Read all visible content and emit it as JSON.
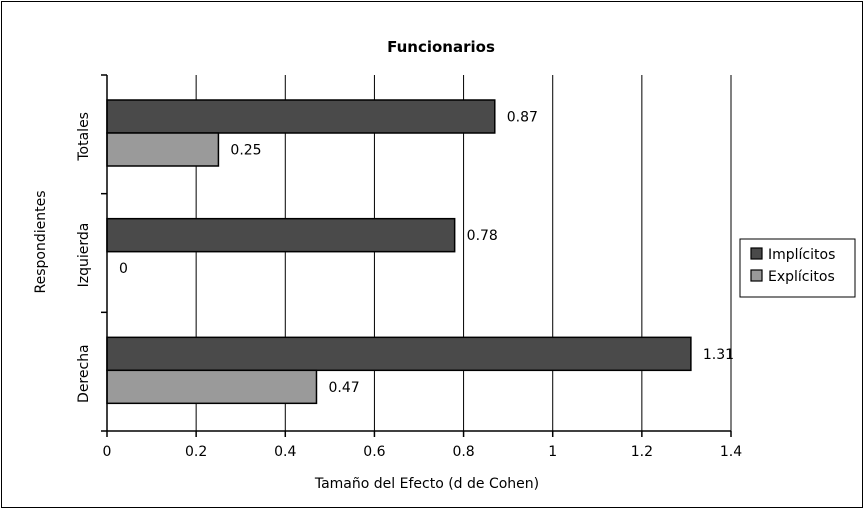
{
  "chart_data": {
    "type": "bar",
    "orientation": "horizontal",
    "title": "Funcionarios",
    "xlabel": "Tamaño del Efecto (d de Cohen)",
    "ylabel": "Respondientes",
    "xlim": [
      0,
      1.4
    ],
    "xticks": [
      "0",
      "0.2",
      "0.4",
      "0.6",
      "0.8",
      "1",
      "1.2",
      "1.4"
    ],
    "grid": true,
    "legend_position": "right",
    "categories": [
      "Totales",
      "Izquierda",
      "Derecha"
    ],
    "series": [
      {
        "name": "Implícitos",
        "color": "#4a4a4a",
        "values": [
          0.87,
          0.78,
          1.31
        ],
        "labels": [
          "0.87",
          "0.78",
          "1.31"
        ]
      },
      {
        "name": "Explícitos",
        "color": "#9a9a9a",
        "values": [
          0.25,
          0,
          0.47
        ],
        "labels": [
          "0.25",
          "0",
          "0.47"
        ]
      }
    ]
  }
}
